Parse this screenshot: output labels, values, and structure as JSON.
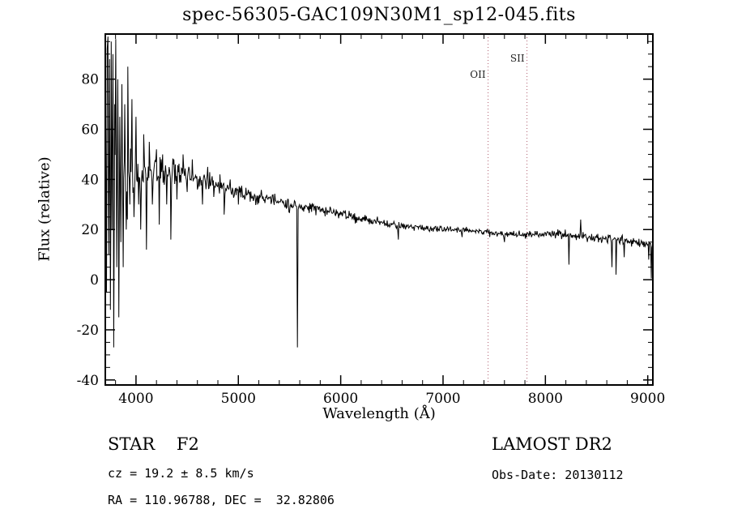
{
  "chart_data": {
    "type": "line",
    "title": "spec-56305-GAC109N30M1_sp12-045.fits",
    "xlabel": "Wavelength (Å)",
    "ylabel": "Flux (relative)",
    "xlim": [
      3700,
      9050
    ],
    "ylim": [
      -42,
      98
    ],
    "x_ticks": [
      4000,
      5000,
      6000,
      7000,
      8000,
      9000
    ],
    "y_ticks": [
      -40,
      -20,
      0,
      20,
      40,
      60,
      80
    ],
    "x_minor_step": 200,
    "y_minor_step": 5,
    "grid": false,
    "legend": "none",
    "line_color": "#000000",
    "marker_color": "#b06070",
    "sample_step": 6,
    "noise_seed": 20130112,
    "marker_lines": [
      {
        "label": "OII",
        "x": 7440,
        "label_row": 2
      },
      {
        "label": "SII",
        "x": 7820,
        "label_row": 1
      }
    ],
    "continuum": [
      [
        3700,
        25
      ],
      [
        3750,
        38
      ],
      [
        3800,
        36
      ],
      [
        3850,
        38
      ],
      [
        3900,
        40
      ],
      [
        4000,
        42
      ],
      [
        4100,
        41
      ],
      [
        4300,
        43
      ],
      [
        4500,
        42
      ],
      [
        4700,
        39
      ],
      [
        4900,
        36
      ],
      [
        5100,
        34
      ],
      [
        5300,
        32
      ],
      [
        5500,
        30
      ],
      [
        5700,
        28.5
      ],
      [
        5900,
        27
      ],
      [
        6100,
        25
      ],
      [
        6300,
        23.5
      ],
      [
        6500,
        22
      ],
      [
        6700,
        21
      ],
      [
        6900,
        20.5
      ],
      [
        7100,
        20
      ],
      [
        7300,
        19.5
      ],
      [
        7500,
        18.5
      ],
      [
        7700,
        18
      ],
      [
        7900,
        18
      ],
      [
        8100,
        18.5
      ],
      [
        8300,
        17.5
      ],
      [
        8500,
        16.5
      ],
      [
        8700,
        16
      ],
      [
        8900,
        15
      ],
      [
        9050,
        14
      ]
    ],
    "noise_amplitude": [
      [
        3700,
        38
      ],
      [
        3800,
        32
      ],
      [
        3900,
        22
      ],
      [
        4000,
        16
      ],
      [
        4100,
        12
      ],
      [
        4300,
        8
      ],
      [
        4600,
        5.5
      ],
      [
        5000,
        4.5
      ],
      [
        5500,
        3.5
      ],
      [
        6000,
        3
      ],
      [
        6500,
        2.2
      ],
      [
        7000,
        1.8
      ],
      [
        7600,
        2
      ],
      [
        8200,
        2.6
      ],
      [
        8700,
        3
      ],
      [
        9050,
        2.5
      ]
    ],
    "features": [
      [
        3705,
        60
      ],
      [
        3712,
        -5
      ],
      [
        3718,
        92
      ],
      [
        3726,
        97
      ],
      [
        3734,
        10
      ],
      [
        3742,
        88
      ],
      [
        3750,
        -12
      ],
      [
        3758,
        95
      ],
      [
        3766,
        20
      ],
      [
        3774,
        90
      ],
      [
        3782,
        -27
      ],
      [
        3792,
        70
      ],
      [
        3802,
        96
      ],
      [
        3812,
        5
      ],
      [
        3822,
        80
      ],
      [
        3832,
        -15
      ],
      [
        3842,
        65
      ],
      [
        3852,
        15
      ],
      [
        3862,
        78
      ],
      [
        3875,
        5
      ],
      [
        3890,
        70
      ],
      [
        3905,
        20
      ],
      [
        3920,
        85
      ],
      [
        3940,
        30
      ],
      [
        3960,
        72
      ],
      [
        3980,
        25
      ],
      [
        4000,
        65
      ],
      [
        4026,
        30
      ],
      [
        4046,
        20
      ],
      [
        4075,
        58
      ],
      [
        4102,
        12
      ],
      [
        4130,
        55
      ],
      [
        4160,
        30
      ],
      [
        4200,
        52
      ],
      [
        4227,
        22
      ],
      [
        4260,
        50
      ],
      [
        4300,
        30
      ],
      [
        4340,
        16
      ],
      [
        4370,
        48
      ],
      [
        4400,
        32
      ],
      [
        4460,
        50
      ],
      [
        4500,
        35
      ],
      [
        4550,
        48
      ],
      [
        4600,
        36
      ],
      [
        4650,
        30
      ],
      [
        4700,
        45
      ],
      [
        4760,
        33
      ],
      [
        4820,
        42
      ],
      [
        4861,
        26
      ],
      [
        4920,
        40
      ],
      [
        5000,
        30
      ],
      [
        5570,
        29
      ],
      [
        5577,
        -27
      ],
      [
        5584,
        28
      ],
      [
        6563,
        16
      ],
      [
        7186,
        17
      ],
      [
        7600,
        15
      ],
      [
        8230,
        6
      ],
      [
        8345,
        24
      ],
      [
        8650,
        5
      ],
      [
        8690,
        2
      ],
      [
        8770,
        9
      ],
      [
        9010,
        8
      ],
      [
        9035,
        0.5
      ]
    ]
  },
  "annotations": {
    "class_label": "STAR    F2",
    "survey": "LAMOST DR2",
    "cz": "cz = 19.2 ± 8.5 km/s",
    "obs_date": "Obs-Date: 20130112",
    "coords": "RA = 110.96788, DEC =  32.82806"
  }
}
